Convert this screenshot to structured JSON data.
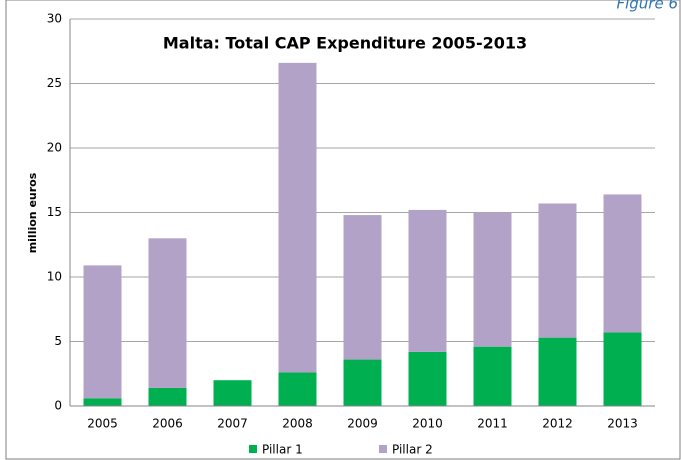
{
  "chart_data": {
    "type": "stacked-bar",
    "title": "Malta: Total CAP Expenditure 2005-2013",
    "annotation": "Figure 6",
    "ylabel": "million euros",
    "categories": [
      "2005",
      "2006",
      "2007",
      "2008",
      "2009",
      "2010",
      "2011",
      "2012",
      "2013"
    ],
    "series": [
      {
        "name": "Pillar 1",
        "color": "#00b050",
        "values": [
          0.6,
          1.4,
          2.0,
          2.6,
          3.6,
          4.2,
          4.6,
          5.3,
          5.7
        ]
      },
      {
        "name": "Pillar 2",
        "color": "#b3a2c7",
        "values": [
          10.3,
          11.6,
          0,
          24.0,
          11.2,
          11.0,
          10.4,
          10.4,
          10.7
        ]
      }
    ],
    "ylim": [
      0,
      30
    ],
    "yticks": [
      0,
      5,
      10,
      15,
      20,
      25,
      30
    ],
    "grid": true
  }
}
